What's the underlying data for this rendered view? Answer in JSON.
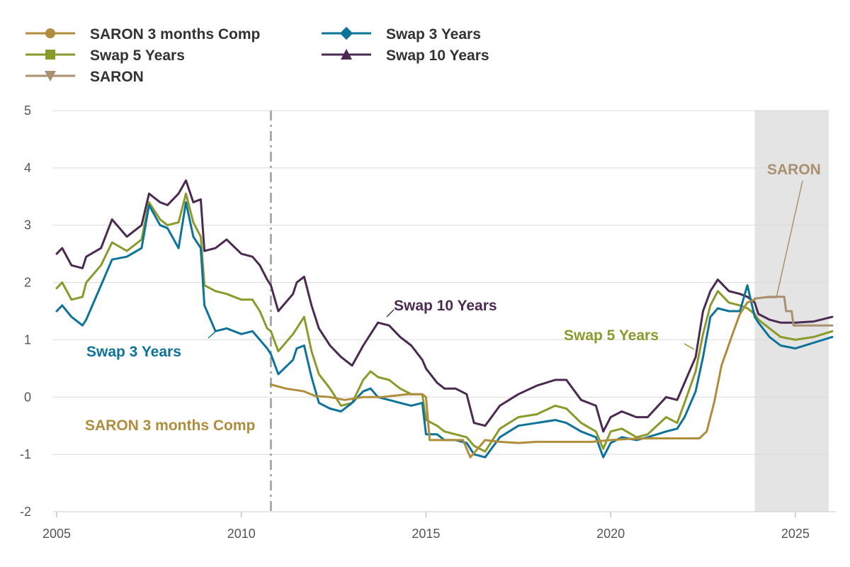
{
  "chart_data": {
    "type": "line",
    "xlim": [
      2005,
      2026
    ],
    "ylim": [
      -2,
      5
    ],
    "x_ticks": [
      "2005",
      "2010",
      "2015",
      "2020",
      "2025"
    ],
    "y_ticks": [
      "5",
      "4",
      "3",
      "2",
      "1",
      "0",
      "-1",
      "-2"
    ],
    "grid": "horizontal",
    "legend_position": "top-left",
    "vertical_reference_line_x": 2010.8,
    "shaded_forecast_region": [
      2023.9,
      2026
    ],
    "colors": {
      "saron_comp": "#b08d3c",
      "swap3": "#0d7399",
      "swap5": "#8a9a2b",
      "swap10": "#4b2a52",
      "saron": "#a89070"
    },
    "legend": [
      {
        "key": "saron_comp",
        "label": "SARON 3 months Comp",
        "marker": "circle"
      },
      {
        "key": "swap3",
        "label": "Swap 3 Years",
        "marker": "diamond"
      },
      {
        "key": "swap5",
        "label": "Swap 5 Years",
        "marker": "square"
      },
      {
        "key": "swap10",
        "label": "Swap 10 Years",
        "marker": "triangle-up"
      },
      {
        "key": "saron",
        "label": "SARON",
        "marker": "triangle-down"
      }
    ],
    "annotations": {
      "swap10": "Swap 10 Years",
      "swap3": "Swap 3 Years",
      "swap5": "Swap 5 Years",
      "saron_comp": "SARON 3 months Comp",
      "saron": "SARON"
    },
    "series": [
      {
        "key": "swap10",
        "name": "Swap 10 Years",
        "x": [
          2005,
          2005.15,
          2005.4,
          2005.7,
          2005.8,
          2006.2,
          2006.5,
          2006.9,
          2007.3,
          2007.5,
          2007.8,
          2008.0,
          2008.3,
          2008.5,
          2008.7,
          2008.9,
          2009.0,
          2009.3,
          2009.6,
          2010.0,
          2010.3,
          2010.5,
          2010.7,
          2010.8,
          2011.0,
          2011.4,
          2011.5,
          2011.7,
          2011.9,
          2012.1,
          2012.4,
          2012.7,
          2013.0,
          2013.3,
          2013.5,
          2013.7,
          2014.0,
          2014.3,
          2014.6,
          2014.9,
          2015.0,
          2015.3,
          2015.5,
          2015.8,
          2016.1,
          2016.3,
          2016.6,
          2017.0,
          2017.5,
          2018.0,
          2018.5,
          2018.8,
          2019.2,
          2019.6,
          2019.8,
          2020.0,
          2020.3,
          2020.7,
          2021.0,
          2021.5,
          2021.8,
          2022.0,
          2022.3,
          2022.5,
          2022.7,
          2022.9,
          2023.2,
          2023.5,
          2023.7,
          2023.9,
          2024.0,
          2024.3,
          2024.6,
          2025.0,
          2025.5,
          2026.0
        ],
        "values": [
          2.5,
          2.6,
          2.3,
          2.25,
          2.45,
          2.6,
          3.1,
          2.8,
          3.0,
          3.55,
          3.4,
          3.35,
          3.55,
          3.78,
          3.4,
          3.45,
          2.55,
          2.6,
          2.75,
          2.5,
          2.45,
          2.3,
          2.05,
          1.95,
          1.5,
          1.8,
          2.0,
          2.1,
          1.6,
          1.2,
          0.9,
          0.7,
          0.55,
          0.9,
          1.1,
          1.3,
          1.25,
          1.05,
          0.9,
          0.65,
          0.5,
          0.25,
          0.15,
          0.15,
          0.05,
          -0.45,
          -0.5,
          -0.15,
          0.05,
          0.2,
          0.3,
          0.3,
          -0.05,
          -0.15,
          -0.6,
          -0.35,
          -0.25,
          -0.35,
          -0.35,
          0.0,
          -0.05,
          0.25,
          0.7,
          1.5,
          1.85,
          2.05,
          1.85,
          1.8,
          1.75,
          1.65,
          1.45,
          1.35,
          1.3,
          1.3,
          1.32,
          1.4
        ]
      },
      {
        "key": "swap5",
        "name": "Swap 5 Years",
        "x": [
          2005,
          2005.15,
          2005.4,
          2005.7,
          2005.8,
          2006.2,
          2006.5,
          2006.9,
          2007.3,
          2007.5,
          2007.8,
          2008.0,
          2008.3,
          2008.5,
          2008.7,
          2008.9,
          2009.0,
          2009.3,
          2009.6,
          2010.0,
          2010.3,
          2010.5,
          2010.7,
          2010.8,
          2011.0,
          2011.4,
          2011.5,
          2011.7,
          2011.9,
          2012.1,
          2012.4,
          2012.7,
          2013.0,
          2013.3,
          2013.5,
          2013.7,
          2014.0,
          2014.3,
          2014.6,
          2014.9,
          2015.0,
          2015.3,
          2015.5,
          2015.8,
          2016.1,
          2016.3,
          2016.6,
          2017.0,
          2017.5,
          2018.0,
          2018.5,
          2018.8,
          2019.2,
          2019.6,
          2019.8,
          2020.0,
          2020.3,
          2020.7,
          2021.0,
          2021.5,
          2021.8,
          2022.0,
          2022.3,
          2022.5,
          2022.7,
          2022.9,
          2023.2,
          2023.5,
          2023.7,
          2023.9,
          2024.0,
          2024.3,
          2024.6,
          2025.0,
          2025.5,
          2026.0
        ],
        "values": [
          1.9,
          2.0,
          1.7,
          1.75,
          2.0,
          2.3,
          2.7,
          2.55,
          2.75,
          3.4,
          3.1,
          3.0,
          3.05,
          3.55,
          3.05,
          2.8,
          1.95,
          1.85,
          1.8,
          1.7,
          1.7,
          1.5,
          1.2,
          1.15,
          0.8,
          1.1,
          1.2,
          1.4,
          0.8,
          0.4,
          0.15,
          -0.15,
          -0.1,
          0.3,
          0.45,
          0.35,
          0.3,
          0.15,
          0.05,
          0.05,
          -0.4,
          -0.5,
          -0.6,
          -0.65,
          -0.7,
          -0.85,
          -0.95,
          -0.55,
          -0.35,
          -0.3,
          -0.15,
          -0.2,
          -0.45,
          -0.6,
          -0.9,
          -0.6,
          -0.55,
          -0.7,
          -0.65,
          -0.35,
          -0.45,
          -0.1,
          0.45,
          1.1,
          1.6,
          1.85,
          1.65,
          1.6,
          1.55,
          1.45,
          1.35,
          1.2,
          1.05,
          1.0,
          1.05,
          1.15
        ]
      },
      {
        "key": "swap3",
        "name": "Swap 3 Years",
        "x": [
          2005,
          2005.15,
          2005.4,
          2005.7,
          2005.8,
          2006.2,
          2006.5,
          2006.9,
          2007.3,
          2007.5,
          2007.8,
          2008.0,
          2008.3,
          2008.5,
          2008.7,
          2008.9,
          2009.0,
          2009.3,
          2009.6,
          2010.0,
          2010.3,
          2010.5,
          2010.7,
          2010.8,
          2011.0,
          2011.4,
          2011.5,
          2011.7,
          2011.9,
          2012.1,
          2012.4,
          2012.7,
          2013.0,
          2013.3,
          2013.5,
          2013.7,
          2014.0,
          2014.3,
          2014.6,
          2014.9,
          2015.0,
          2015.3,
          2015.5,
          2015.8,
          2016.1,
          2016.3,
          2016.6,
          2017.0,
          2017.5,
          2018.0,
          2018.5,
          2018.8,
          2019.2,
          2019.6,
          2019.8,
          2020.0,
          2020.3,
          2020.7,
          2021.0,
          2021.5,
          2021.8,
          2022.0,
          2022.3,
          2022.5,
          2022.7,
          2022.9,
          2023.2,
          2023.5,
          2023.7,
          2023.9,
          2024.0,
          2024.3,
          2024.6,
          2025.0,
          2025.5,
          2026.0
        ],
        "values": [
          1.5,
          1.6,
          1.4,
          1.25,
          1.35,
          1.95,
          2.4,
          2.45,
          2.6,
          3.35,
          3.0,
          2.95,
          2.6,
          3.4,
          2.8,
          2.6,
          1.6,
          1.15,
          1.2,
          1.1,
          1.15,
          1.0,
          0.85,
          0.75,
          0.4,
          0.65,
          0.85,
          0.9,
          0.35,
          -0.1,
          -0.2,
          -0.25,
          -0.1,
          0.1,
          0.15,
          0.0,
          -0.05,
          -0.1,
          -0.15,
          -0.1,
          -0.65,
          -0.65,
          -0.75,
          -0.75,
          -0.8,
          -1.0,
          -1.05,
          -0.7,
          -0.5,
          -0.45,
          -0.4,
          -0.45,
          -0.6,
          -0.7,
          -1.05,
          -0.8,
          -0.7,
          -0.75,
          -0.7,
          -0.6,
          -0.55,
          -0.35,
          0.1,
          0.7,
          1.4,
          1.55,
          1.5,
          1.5,
          1.95,
          1.4,
          1.3,
          1.05,
          0.9,
          0.85,
          0.95,
          1.05
        ]
      },
      {
        "key": "saron_comp",
        "name": "SARON 3 months Comp",
        "x": [
          2010.8,
          2011.2,
          2011.7,
          2012.0,
          2012.4,
          2012.8,
          2013.3,
          2013.8,
          2014.5,
          2014.9,
          2015.0,
          2015.1,
          2015.5,
          2016.0,
          2016.2,
          2016.6,
          2017.0,
          2017.5,
          2018.0,
          2018.5,
          2019.0,
          2019.5,
          2020.0,
          2020.5,
          2021.0,
          2021.5,
          2022.0,
          2022.4,
          2022.6,
          2022.8,
          2023.0,
          2023.3,
          2023.5,
          2023.7,
          2023.9
        ],
        "values": [
          0.22,
          0.15,
          0.1,
          0.02,
          0.0,
          -0.05,
          0.0,
          0.0,
          0.05,
          0.05,
          0.0,
          -0.75,
          -0.75,
          -0.75,
          -1.05,
          -0.75,
          -0.78,
          -0.8,
          -0.78,
          -0.78,
          -0.78,
          -0.78,
          -0.75,
          -0.73,
          -0.72,
          -0.72,
          -0.72,
          -0.72,
          -0.6,
          -0.1,
          0.55,
          1.1,
          1.45,
          1.65,
          1.7
        ]
      },
      {
        "key": "saron",
        "name": "SARON",
        "x": [
          2023.9,
          2024.3,
          2024.7,
          2024.75,
          2024.9,
          2024.95,
          2025.5,
          2026.0
        ],
        "values": [
          1.72,
          1.75,
          1.75,
          1.5,
          1.5,
          1.25,
          1.25,
          1.25
        ]
      }
    ]
  }
}
